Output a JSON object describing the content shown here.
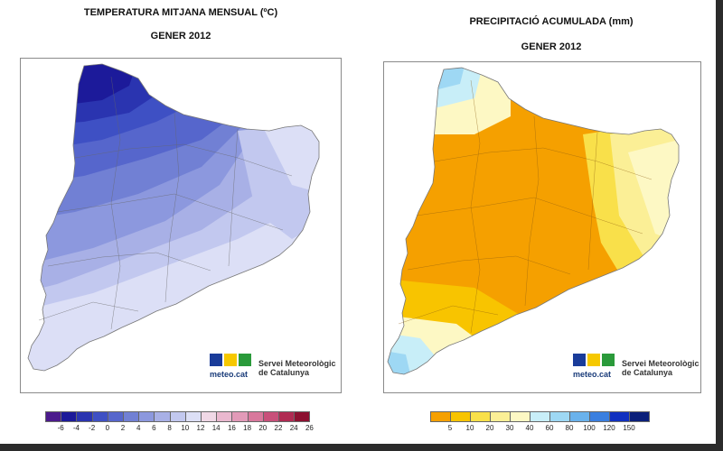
{
  "left_panel": {
    "title_line1": "TEMPERATURA MITJANA MENSUAL (ºC)",
    "title_line2": "GENER 2012",
    "legend_values": [
      "-6",
      "-4",
      "-2",
      "0",
      "2",
      "4",
      "6",
      "8",
      "10",
      "12",
      "14",
      "16",
      "18",
      "20",
      "22",
      "24",
      "26"
    ],
    "legend_colors": [
      "#4b1a8c",
      "#1c1a9a",
      "#2a34b0",
      "#3e50c4",
      "#5666cc",
      "#7180d4",
      "#8c98de",
      "#a8b0e6",
      "#c2c8ef",
      "#dcdff6",
      "#f0d8e6",
      "#eab8cf",
      "#e29ab8",
      "#d8789c",
      "#c8507a",
      "#b02a52",
      "#8c1030"
    ]
  },
  "right_panel": {
    "title_line1": "PRECIPITACIÓ ACUMULADA (mm)",
    "title_line2": "GENER 2012",
    "legend_values": [
      "5",
      "10",
      "20",
      "30",
      "40",
      "60",
      "80",
      "100",
      "120",
      "150"
    ],
    "legend_colors": [
      "#f5a000",
      "#f8c400",
      "#f9e04a",
      "#fbef96",
      "#fdf8c4",
      "#c8eef8",
      "#9ed8f4",
      "#6ab2ec",
      "#3a7fe0",
      "#1030c0",
      "#0a1f7a"
    ]
  },
  "logo": {
    "brand": "meteo.cat",
    "org_line1": "Servei Meteorològic",
    "org_line2": "de Catalunya"
  }
}
